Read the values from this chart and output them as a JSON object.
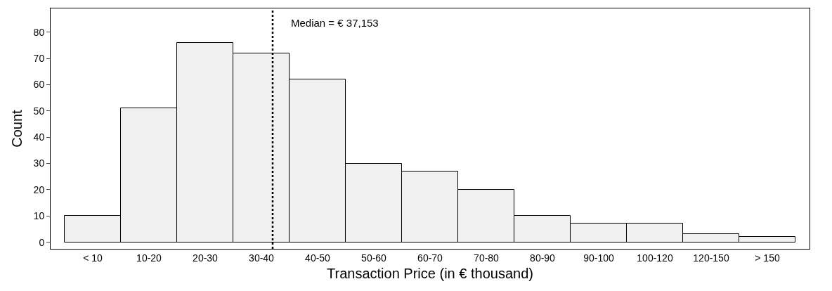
{
  "chart_data": {
    "type": "bar",
    "xlabel": "Transaction Price (in € thousand)",
    "ylabel": "Count",
    "categories": [
      "< 10",
      "10-20",
      "20-30",
      "30-40",
      "40-50",
      "50-60",
      "60-70",
      "70-80",
      "80-90",
      "90-100",
      "100-120",
      "120-150",
      "> 150"
    ],
    "values": [
      10,
      51,
      76,
      72,
      62,
      30,
      27,
      20,
      10,
      7,
      7,
      3,
      2
    ],
    "color": "#f0f0f0",
    "ylim": [
      -2.5,
      89
    ],
    "yticks": [
      0,
      10,
      20,
      30,
      40,
      50,
      60,
      70,
      80
    ],
    "grid": false,
    "ref_lines": [
      {
        "axis": "x",
        "value": "30-40",
        "line_style": "dotted",
        "color": "#000000"
      }
    ],
    "annotations": [
      "Median = € 37,153"
    ]
  }
}
